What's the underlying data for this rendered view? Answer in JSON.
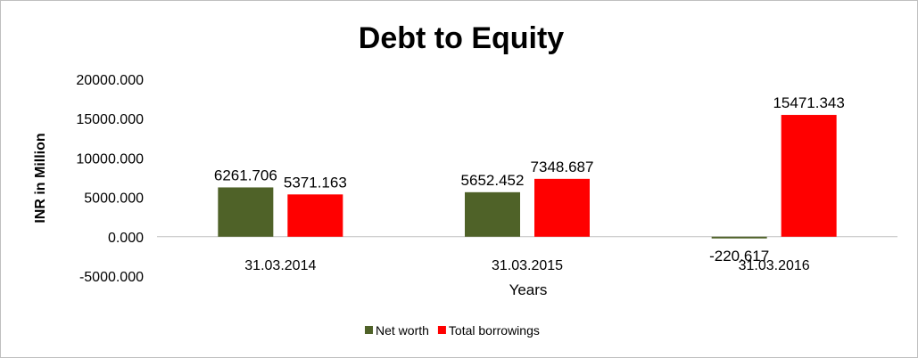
{
  "chart_data": {
    "type": "bar",
    "title": "Debt to Equity",
    "xlabel": "Years",
    "ylabel": "INR in Million",
    "categories": [
      "31.03.2014",
      "31.03.2015",
      "31.03.2016"
    ],
    "series": [
      {
        "name": "Net worth",
        "color": "#4f6228",
        "values": [
          6261.706,
          5652.452,
          -220.617
        ],
        "labels": [
          "6261.706",
          "5652.452",
          "-220.617"
        ]
      },
      {
        "name": "Total borrowings",
        "color": "#ff0000",
        "values": [
          5371.163,
          7348.687,
          15471.343
        ],
        "labels": [
          "5371.163",
          "7348.687",
          "15471.343"
        ]
      }
    ],
    "ylim": [
      -5000,
      20000
    ],
    "yticks": [
      20000,
      15000,
      10000,
      5000,
      0,
      -5000
    ],
    "ytick_labels": [
      "20000.000",
      "15000.000",
      "10000.000",
      "5000.000",
      "0.000",
      "-5000.000"
    ],
    "grid": false,
    "legend_position": "bottom"
  }
}
